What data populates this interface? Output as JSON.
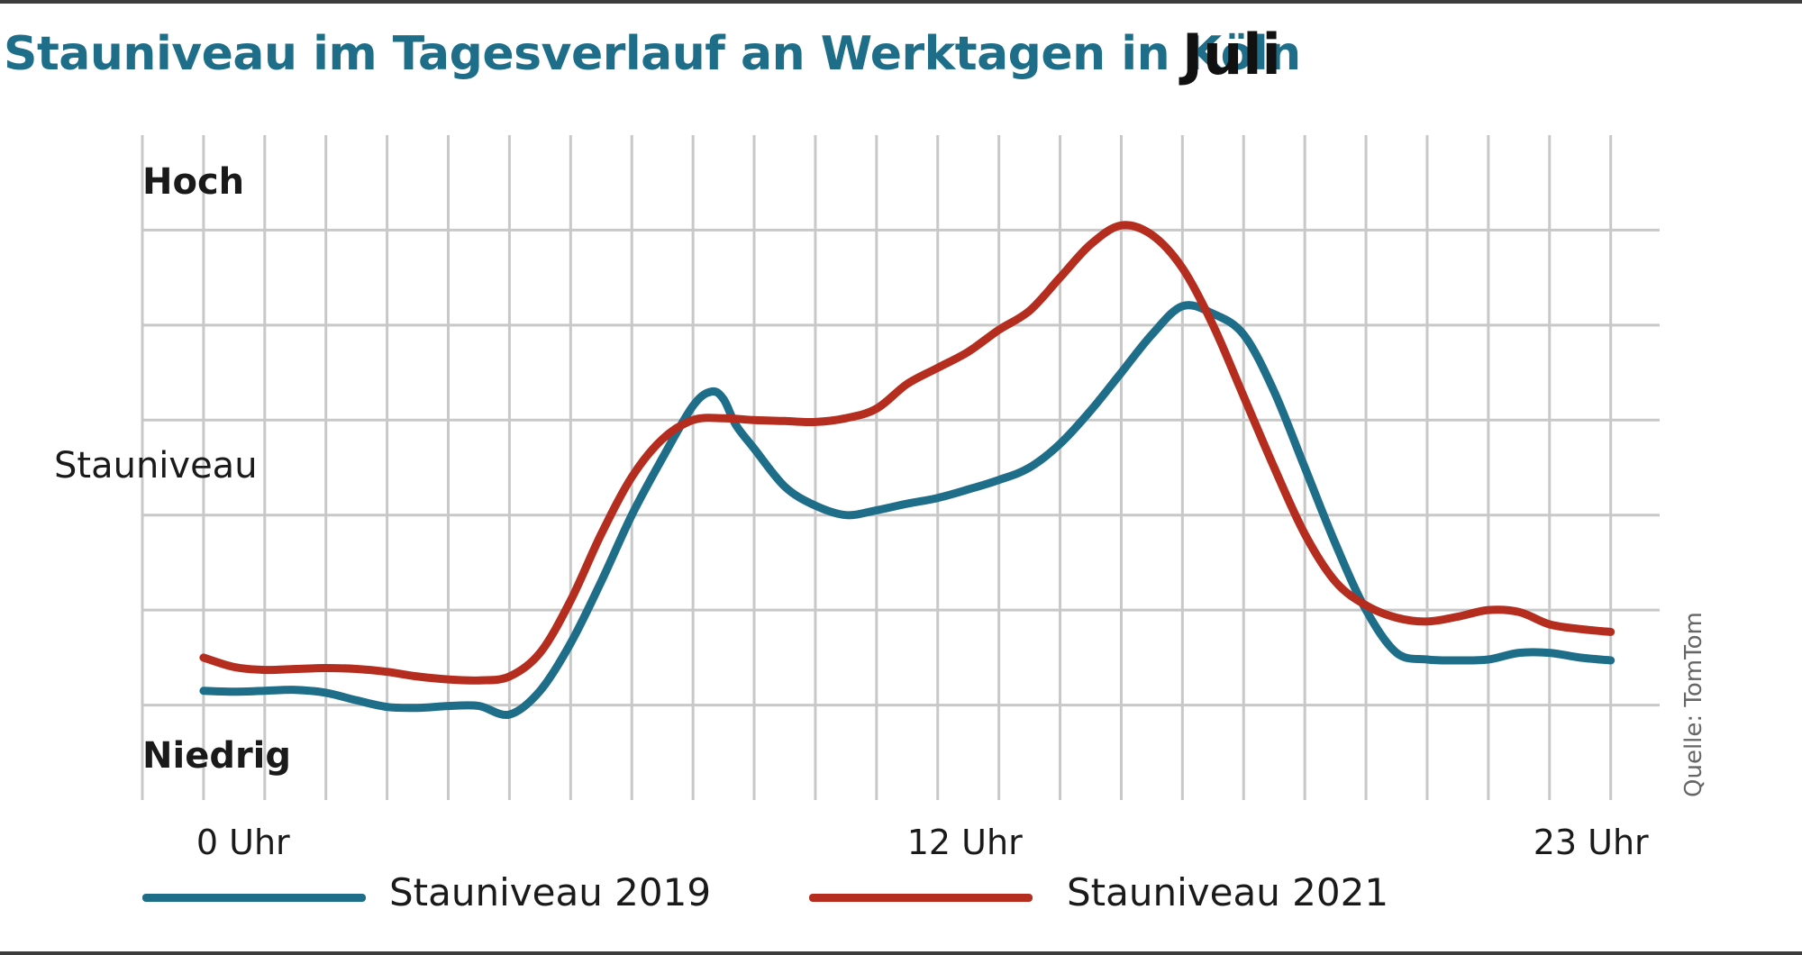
{
  "header": {
    "title": "Stauniveau im Tagesverlauf an Werktagen in Köln",
    "month": "Juli"
  },
  "source": "Quelle: TomTom",
  "colors": {
    "series_2019": "#1e6e8a",
    "series_2021": "#b52d1e",
    "grid": "#c8c8c8",
    "title": "#1e6e8a"
  },
  "chart_data": {
    "type": "line",
    "title": "Stauniveau im Tagesverlauf an Werktagen in Köln",
    "subtitle": "Juli",
    "ylabel": "Stauniveau",
    "y_ticks_text": {
      "high": "Hoch",
      "low": "Niedrig"
    },
    "x_tick_labels": [
      {
        "x": 0,
        "label": "0 Uhr"
      },
      {
        "x": 12,
        "label": "12 Uhr"
      },
      {
        "x": 23,
        "label": "23 Uhr"
      }
    ],
    "xlim": [
      -1,
      23.8
    ],
    "ylim": [
      0,
      7
    ],
    "grid": true,
    "legend_position": "bottom",
    "series": [
      {
        "name": "Stauniveau 2019",
        "points": [
          [
            0,
            1.15
          ],
          [
            0.5,
            1.14
          ],
          [
            1,
            1.15
          ],
          [
            1.5,
            1.16
          ],
          [
            2,
            1.13
          ],
          [
            2.5,
            1.05
          ],
          [
            3,
            0.98
          ],
          [
            3.5,
            0.97
          ],
          [
            4,
            0.99
          ],
          [
            4.5,
            0.99
          ],
          [
            5,
            0.9
          ],
          [
            5.5,
            1.15
          ],
          [
            6,
            1.65
          ],
          [
            6.5,
            2.3
          ],
          [
            7,
            3.0
          ],
          [
            7.5,
            3.6
          ],
          [
            8,
            4.15
          ],
          [
            8.3,
            4.3
          ],
          [
            8.5,
            4.22
          ],
          [
            8.7,
            3.95
          ],
          [
            9,
            3.7
          ],
          [
            9.5,
            3.3
          ],
          [
            10,
            3.1
          ],
          [
            10.5,
            3.0
          ],
          [
            11,
            3.05
          ],
          [
            11.5,
            3.12
          ],
          [
            12,
            3.18
          ],
          [
            12.5,
            3.27
          ],
          [
            13,
            3.37
          ],
          [
            13.5,
            3.5
          ],
          [
            14,
            3.75
          ],
          [
            14.5,
            4.1
          ],
          [
            15,
            4.5
          ],
          [
            15.5,
            4.9
          ],
          [
            16,
            5.2
          ],
          [
            16.5,
            5.12
          ],
          [
            17,
            4.9
          ],
          [
            17.5,
            4.3
          ],
          [
            18,
            3.5
          ],
          [
            18.5,
            2.7
          ],
          [
            19,
            2.0
          ],
          [
            19.5,
            1.55
          ],
          [
            20,
            1.48
          ],
          [
            20.5,
            1.47
          ],
          [
            21,
            1.48
          ],
          [
            21.5,
            1.55
          ],
          [
            22,
            1.55
          ],
          [
            22.5,
            1.5
          ],
          [
            23,
            1.47
          ]
        ]
      },
      {
        "name": "Stauniveau 2021",
        "points": [
          [
            0,
            1.5
          ],
          [
            0.5,
            1.4
          ],
          [
            1,
            1.37
          ],
          [
            1.5,
            1.38
          ],
          [
            2,
            1.39
          ],
          [
            2.5,
            1.38
          ],
          [
            3,
            1.35
          ],
          [
            3.5,
            1.3
          ],
          [
            4,
            1.27
          ],
          [
            4.5,
            1.26
          ],
          [
            5,
            1.3
          ],
          [
            5.5,
            1.55
          ],
          [
            6,
            2.1
          ],
          [
            6.5,
            2.8
          ],
          [
            7,
            3.4
          ],
          [
            7.5,
            3.8
          ],
          [
            8,
            4.0
          ],
          [
            8.5,
            4.02
          ],
          [
            9,
            4.0
          ],
          [
            9.5,
            3.99
          ],
          [
            10,
            3.98
          ],
          [
            10.5,
            4.02
          ],
          [
            11,
            4.12
          ],
          [
            11.5,
            4.38
          ],
          [
            12,
            4.55
          ],
          [
            12.5,
            4.72
          ],
          [
            13,
            4.95
          ],
          [
            13.5,
            5.15
          ],
          [
            14,
            5.5
          ],
          [
            14.5,
            5.85
          ],
          [
            15,
            6.05
          ],
          [
            15.5,
            5.95
          ],
          [
            16,
            5.6
          ],
          [
            16.5,
            5.0
          ],
          [
            17,
            4.25
          ],
          [
            17.5,
            3.5
          ],
          [
            18,
            2.8
          ],
          [
            18.5,
            2.3
          ],
          [
            19,
            2.05
          ],
          [
            19.5,
            1.92
          ],
          [
            20,
            1.88
          ],
          [
            20.5,
            1.93
          ],
          [
            21,
            2.0
          ],
          [
            21.5,
            1.98
          ],
          [
            22,
            1.85
          ],
          [
            22.5,
            1.8
          ],
          [
            23,
            1.77
          ]
        ]
      }
    ]
  }
}
